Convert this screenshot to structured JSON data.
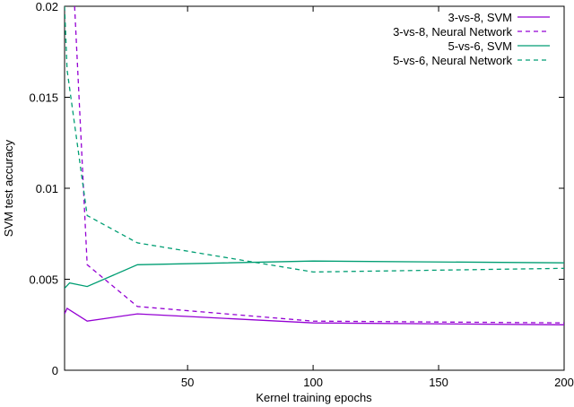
{
  "chart_data": {
    "type": "line",
    "title": "",
    "xlabel": "Kernel training epochs",
    "ylabel": "SVM test accuracy",
    "xlim": [
      1,
      200
    ],
    "ylim": [
      0,
      0.02
    ],
    "xticks": [
      50,
      100,
      150,
      200
    ],
    "xtick_labels": [
      "50",
      "100",
      "150",
      "200"
    ],
    "yticks": [
      0,
      0.005,
      0.01,
      0.015,
      0.02
    ],
    "ytick_labels": [
      "0",
      "0.005",
      "0.01",
      "0.015",
      "0.02"
    ],
    "grid": false,
    "legend_position": "top-right",
    "series": [
      {
        "name": "3-vs-8, SVM",
        "color": "#9400d3",
        "dash": "solid",
        "x": [
          1,
          2,
          10,
          30,
          100,
          200
        ],
        "y": [
          0.0031,
          0.0034,
          0.0027,
          0.0031,
          0.0026,
          0.0025
        ]
      },
      {
        "name": "3-vs-8, Neural Network",
        "color": "#9400d3",
        "dash": "dashed",
        "x": [
          5,
          10,
          30,
          100,
          200
        ],
        "y": [
          0.02,
          0.0058,
          0.0035,
          0.0027,
          0.0026
        ]
      },
      {
        "name": "5-vs-6, SVM",
        "color": "#009e73",
        "dash": "solid",
        "x": [
          1,
          3,
          10,
          30,
          100,
          200
        ],
        "y": [
          0.0045,
          0.0048,
          0.0046,
          0.0058,
          0.006,
          0.0059
        ]
      },
      {
        "name": "5-vs-6, Neural Network",
        "color": "#009e73",
        "dash": "dashed",
        "x": [
          1,
          2,
          10,
          30,
          100,
          200
        ],
        "y": [
          0.02,
          0.0165,
          0.0085,
          0.007,
          0.0054,
          0.0056
        ]
      }
    ]
  }
}
